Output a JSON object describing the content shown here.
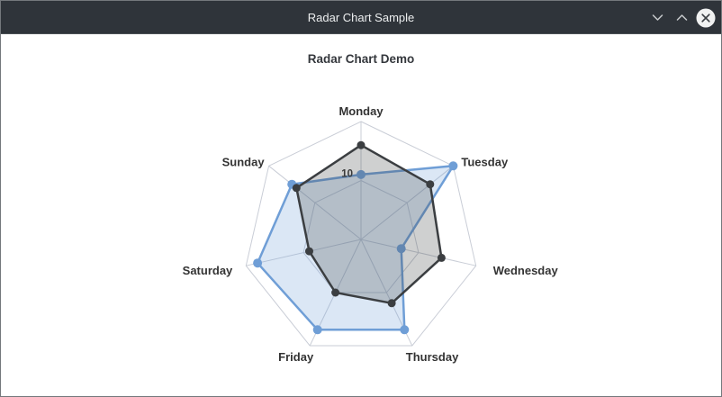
{
  "window": {
    "title": "Radar Chart Sample",
    "titlebar_color": "#2f343a",
    "border_color": "#74787c",
    "icons": {
      "minimize": "chevron-down",
      "maximize": "chevron-up",
      "close": "circle-x"
    }
  },
  "chart": {
    "title": "Radar Chart Demo",
    "background": "#ffffff"
  },
  "chart_data": {
    "type": "radar",
    "title": "Radar Chart Demo",
    "categories": [
      "Monday",
      "Tuesday",
      "Wednesday",
      "Thursday",
      "Friday",
      "Saturday",
      "Sunday"
    ],
    "start_axis_position": "top",
    "direction": "clockwise",
    "scale": {
      "min": 0,
      "max": 20,
      "rings": [
        10,
        20
      ],
      "labeled_rings": [
        10
      ]
    },
    "series": [
      {
        "id": "blue",
        "line_color": "#6f9ed6",
        "fill_color": "rgba(111,158,214,0.25)",
        "point_radius": 5,
        "values": [
          11,
          20,
          7,
          17,
          17,
          18,
          15
        ]
      },
      {
        "id": "dark",
        "line_color": "#3b3e41",
        "fill_color": "rgba(64,66,69,0.25)",
        "point_radius": 4.5,
        "values": [
          16,
          15,
          14,
          12,
          10,
          9,
          14
        ]
      }
    ],
    "grid_color": "#c9cdd6",
    "label_color": "#333333",
    "legend": null
  }
}
